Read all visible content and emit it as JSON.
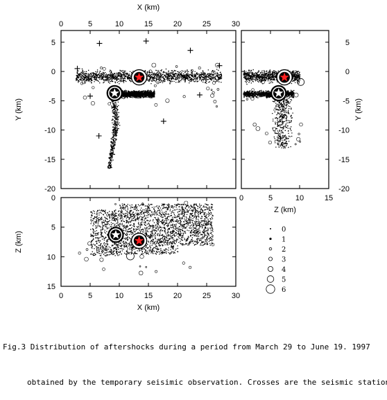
{
  "caption": {
    "line1": "Fig.3 Distribution of aftershocks during a period from March 29 to June 19. 1997",
    "line2": "obtained by the temporary seisimic observation. Crosses are the seismic stations."
  },
  "chart_data": [
    {
      "panel": "map",
      "type": "scatter",
      "xlabel": "X (km)",
      "ylabel": "Y (km)",
      "xlim": [
        0,
        30
      ],
      "ylim": [
        -20,
        7
      ],
      "xticks": [
        0,
        5,
        10,
        15,
        20,
        25,
        30
      ],
      "yticks": [
        5,
        0,
        -5,
        -10,
        -15,
        -20
      ],
      "x_axis_position": "top",
      "y_axis_position": "left",
      "grid": false,
      "aftershock_bands": [
        {
          "x_range": [
            2.5,
            27.5
          ],
          "y_range": [
            -2.2,
            0.6
          ],
          "density": "high"
        },
        {
          "x_range": [
            8.0,
            16.0
          ],
          "y_range": [
            -4.6,
            -3.0
          ],
          "density": "high"
        },
        {
          "x_range": [
            8.0,
            11.0
          ],
          "y_range": [
            -16.5,
            -3.0
          ],
          "density": "medium"
        }
      ],
      "mainshocks": [
        {
          "x": 13.4,
          "y": -1.0,
          "star_color": "#ff2020"
        },
        {
          "x": 9.2,
          "y": -3.7,
          "star_color": "#ffffff"
        }
      ],
      "stations": [
        {
          "x": 2.8,
          "y": 0.5
        },
        {
          "x": 6.6,
          "y": 4.8
        },
        {
          "x": 14.6,
          "y": 5.2
        },
        {
          "x": 22.2,
          "y": 3.6
        },
        {
          "x": 27.2,
          "y": 1.0
        },
        {
          "x": 5.0,
          "y": -4.2
        },
        {
          "x": 23.8,
          "y": -4.0
        },
        {
          "x": 6.5,
          "y": -11.0
        },
        {
          "x": 17.6,
          "y": -8.5
        }
      ]
    },
    {
      "panel": "cross-section-y",
      "type": "scatter",
      "xlabel": "Z (km)",
      "ylabel": "Y (km)",
      "xlim": [
        0,
        15
      ],
      "ylim": [
        -20,
        7
      ],
      "xticks": [
        0,
        5,
        10,
        15
      ],
      "yticks": [
        5,
        0,
        -5,
        -10,
        -15,
        -20
      ],
      "y_axis_position": "right",
      "grid": false,
      "aftershock_bands": [
        {
          "z_range": [
            0.3,
            10.0
          ],
          "y_range": [
            -2.2,
            0.7
          ],
          "density": "high"
        },
        {
          "z_range": [
            0.3,
            9.0
          ],
          "y_range": [
            -4.6,
            -3.0
          ],
          "density": "high"
        },
        {
          "z_range": [
            5.0,
            9.5
          ],
          "y_range": [
            -13.0,
            -4.5
          ],
          "density": "medium"
        }
      ],
      "mainshocks": [
        {
          "z": 7.4,
          "y": -1.0,
          "star_color": "#ff2020"
        },
        {
          "z": 6.4,
          "y": -3.7,
          "star_color": "#ffffff"
        }
      ]
    },
    {
      "panel": "cross-section-x",
      "type": "scatter",
      "xlabel": "X (km)",
      "ylabel": "Z (km)",
      "xlim": [
        0,
        30
      ],
      "ylim": [
        15,
        0
      ],
      "xticks": [
        0,
        5,
        10,
        15,
        20,
        25,
        30
      ],
      "yticks": [
        0,
        5,
        10,
        15
      ],
      "grid": false,
      "aftershock_bands": [
        {
          "x_range": [
            3.0,
            27.5
          ],
          "z_range": [
            0.3,
            9.8
          ],
          "density": "high"
        }
      ],
      "mainshocks": [
        {
          "x": 13.4,
          "z": 7.3,
          "star_color": "#ff2020"
        },
        {
          "x": 9.4,
          "z": 6.3,
          "star_color": "#ffffff"
        }
      ]
    }
  ],
  "legend": {
    "title": "",
    "entries": [
      {
        "label": "0",
        "magnitude": 0
      },
      {
        "label": "1",
        "magnitude": 1
      },
      {
        "label": "2",
        "magnitude": 2
      },
      {
        "label": "3",
        "magnitude": 3
      },
      {
        "label": "4",
        "magnitude": 4
      },
      {
        "label": "5",
        "magnitude": 5
      },
      {
        "label": "6",
        "magnitude": 6
      }
    ]
  }
}
